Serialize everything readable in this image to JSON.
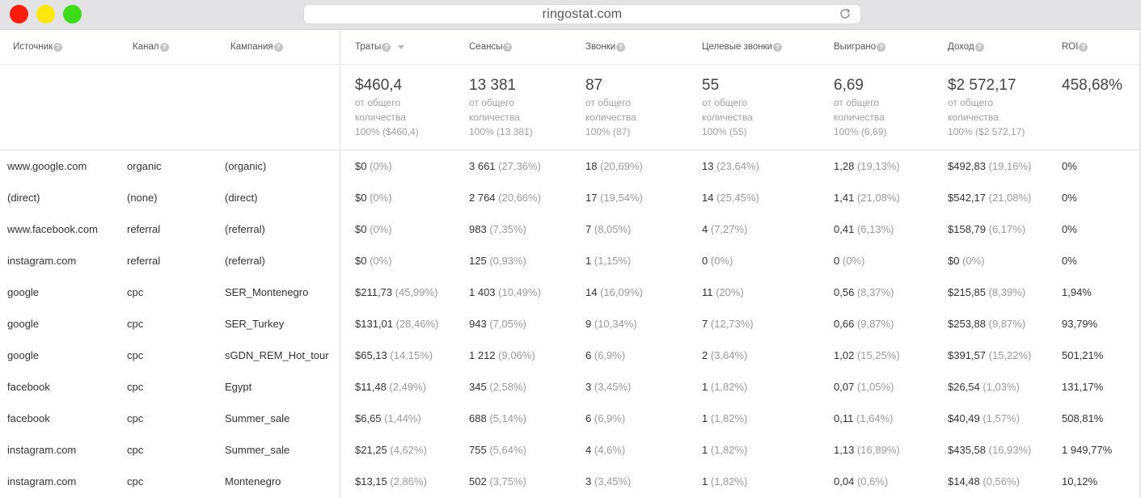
{
  "browser": {
    "url": "ringostat.com"
  },
  "columns": {
    "dimensions": [
      "Источник",
      "Канал",
      "Кампания"
    ],
    "metrics": [
      "Траты",
      "Сеансы",
      "Звонки",
      "Целевые звонки",
      "Выиграно",
      "Доход",
      "ROI"
    ]
  },
  "totals": [
    {
      "value": "$460,4",
      "line1": "от общего",
      "line2": "количества",
      "line3": "100% ($460,4)"
    },
    {
      "value": "13 381",
      "line1": "от общего",
      "line2": "количества",
      "line3": "100% (13 381)"
    },
    {
      "value": "87",
      "line1": "от общего",
      "line2": "количества",
      "line3": "100% (87)"
    },
    {
      "value": "55",
      "line1": "от общего",
      "line2": "количества",
      "line3": "100% (55)"
    },
    {
      "value": "6,69",
      "line1": "от общего",
      "line2": "количества",
      "line3": "100% (6,69)"
    },
    {
      "value": "$2 572,17",
      "line1": "от общего",
      "line2": "количества",
      "line3": "100% ($2 572,17)"
    },
    {
      "value": "458,68%"
    }
  ],
  "rows": [
    {
      "source": "www.google.com",
      "channel": "organic",
      "campaign": "(organic)",
      "m": [
        [
          "$0",
          "(0%)"
        ],
        [
          "3 661",
          "(27,36%)"
        ],
        [
          "18",
          "(20,69%)"
        ],
        [
          "13",
          "(23,64%)"
        ],
        [
          "1,28",
          "(19,13%)"
        ],
        [
          "$492,83",
          "(19,16%)"
        ],
        [
          "0%",
          ""
        ]
      ]
    },
    {
      "source": "(direct)",
      "channel": "(none)",
      "campaign": "(direct)",
      "m": [
        [
          "$0",
          "(0%)"
        ],
        [
          "2 764",
          "(20,66%)"
        ],
        [
          "17",
          "(19,54%)"
        ],
        [
          "14",
          "(25,45%)"
        ],
        [
          "1,41",
          "(21,08%)"
        ],
        [
          "$542,17",
          "(21,08%)"
        ],
        [
          "0%",
          ""
        ]
      ]
    },
    {
      "source": "www.facebook.com",
      "channel": "referral",
      "campaign": "(referral)",
      "m": [
        [
          "$0",
          "(0%)"
        ],
        [
          "983",
          "(7,35%)"
        ],
        [
          "7",
          "(8,05%)"
        ],
        [
          "4",
          "(7,27%)"
        ],
        [
          "0,41",
          "(6,13%)"
        ],
        [
          "$158,79",
          "(6,17%)"
        ],
        [
          "0%",
          ""
        ]
      ]
    },
    {
      "source": "instagram.com",
      "channel": "referral",
      "campaign": "(referral)",
      "m": [
        [
          "$0",
          "(0%)"
        ],
        [
          "125",
          "(0,93%)"
        ],
        [
          "1",
          "(1,15%)"
        ],
        [
          "0",
          "(0%)"
        ],
        [
          "0",
          "(0%)"
        ],
        [
          "$0",
          "(0%)"
        ],
        [
          "0%",
          ""
        ]
      ]
    },
    {
      "source": "google",
      "channel": "cpc",
      "campaign": "SER_Montenegro",
      "m": [
        [
          "$211,73",
          "(45,99%)"
        ],
        [
          "1 403",
          "(10,49%)"
        ],
        [
          "14",
          "(16,09%)"
        ],
        [
          "11",
          "(20%)"
        ],
        [
          "0,56",
          "(8,37%)"
        ],
        [
          "$215,85",
          "(8,39%)"
        ],
        [
          "1,94%",
          ""
        ]
      ]
    },
    {
      "source": "google",
      "channel": "cpc",
      "campaign": "SER_Turkey",
      "m": [
        [
          "$131,01",
          "(28,46%)"
        ],
        [
          "943",
          "(7,05%)"
        ],
        [
          "9",
          "(10,34%)"
        ],
        [
          "7",
          "(12,73%)"
        ],
        [
          "0,66",
          "(9,87%)"
        ],
        [
          "$253,88",
          "(9,87%)"
        ],
        [
          "93,79%",
          ""
        ]
      ]
    },
    {
      "source": "google",
      "channel": "cpc",
      "campaign": "sGDN_REM_Hot_tour",
      "m": [
        [
          "$65,13",
          "(14,15%)"
        ],
        [
          "1 212",
          "(9,06%)"
        ],
        [
          "6",
          "(6,9%)"
        ],
        [
          "2",
          "(3,64%)"
        ],
        [
          "1,02",
          "(15,25%)"
        ],
        [
          "$391,57",
          "(15,22%)"
        ],
        [
          "501,21%",
          ""
        ]
      ]
    },
    {
      "source": "facebook",
      "channel": "cpc",
      "campaign": "Egypt",
      "m": [
        [
          "$11,48",
          "(2,49%)"
        ],
        [
          "345",
          "(2,58%)"
        ],
        [
          "3",
          "(3,45%)"
        ],
        [
          "1",
          "(1,82%)"
        ],
        [
          "0,07",
          "(1,05%)"
        ],
        [
          "$26,54",
          "(1,03%)"
        ],
        [
          "131,17%",
          ""
        ]
      ]
    },
    {
      "source": "facebook",
      "channel": "cpc",
      "campaign": "Summer_sale",
      "m": [
        [
          "$6,65",
          "(1,44%)"
        ],
        [
          "688",
          "(5,14%)"
        ],
        [
          "6",
          "(6,9%)"
        ],
        [
          "1",
          "(1,82%)"
        ],
        [
          "0,11",
          "(1,64%)"
        ],
        [
          "$40,49",
          "(1,57%)"
        ],
        [
          "508,81%",
          ""
        ]
      ]
    },
    {
      "source": "instagram.com",
      "channel": "cpc",
      "campaign": "Summer_sale",
      "m": [
        [
          "$21,25",
          "(4,62%)"
        ],
        [
          "755",
          "(5,64%)"
        ],
        [
          "4",
          "(4,6%)"
        ],
        [
          "1",
          "(1,82%)"
        ],
        [
          "1,13",
          "(16,89%)"
        ],
        [
          "$435,58",
          "(16,93%)"
        ],
        [
          "1 949,77%",
          ""
        ]
      ]
    },
    {
      "source": "instagram.com",
      "channel": "cpc",
      "campaign": "Montenegro",
      "m": [
        [
          "$13,15",
          "(2,86%)"
        ],
        [
          "502",
          "(3,75%)"
        ],
        [
          "3",
          "(3,45%)"
        ],
        [
          "1",
          "(1,82%)"
        ],
        [
          "0,04",
          "(0,6%)"
        ],
        [
          "$14,48",
          "(0,56%)"
        ],
        [
          "10,12%",
          ""
        ]
      ]
    }
  ]
}
